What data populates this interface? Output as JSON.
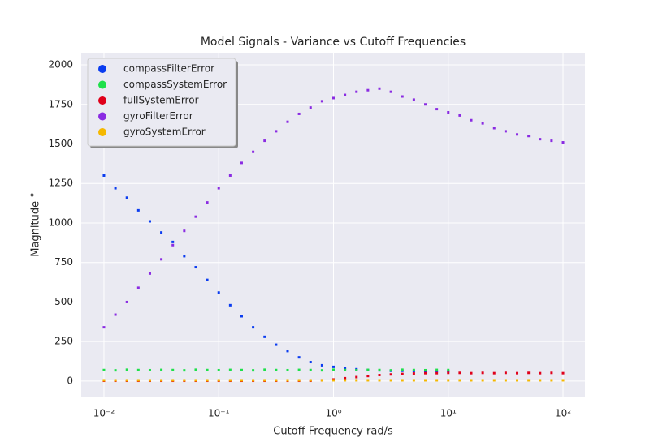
{
  "chart_data": {
    "type": "scatter",
    "title": "Model Signals - Variance vs Cutoff Frequencies",
    "x_label": "Cutoff Frequency rad/s",
    "y_label": "Magnitude °",
    "xscale": "log",
    "xlim": [
      0.00634,
      155.2
    ],
    "ylim": [
      -103,
      2077
    ],
    "xticks": [
      {
        "value": 0.01,
        "label": "10⁻²"
      },
      {
        "value": 0.1,
        "label": "10⁻¹"
      },
      {
        "value": 1,
        "label": "10⁰"
      },
      {
        "value": 10,
        "label": "10¹"
      },
      {
        "value": 100,
        "label": "10²"
      }
    ],
    "yticks": [
      0,
      250,
      500,
      750,
      1000,
      1250,
      1500,
      1750,
      2000
    ],
    "grid": true,
    "legend": "upper left",
    "x": [
      0.01,
      0.01259,
      0.01585,
      0.01995,
      0.02512,
      0.03162,
      0.03981,
      0.05012,
      0.0631,
      0.07943,
      0.1,
      0.1259,
      0.1585,
      0.1995,
      0.2512,
      0.3162,
      0.3981,
      0.5012,
      0.631,
      0.7943,
      1,
      1.259,
      1.585,
      1.995,
      2.512,
      3.162,
      3.981,
      5.012,
      6.31,
      7.943,
      10,
      12.59,
      15.85,
      19.95,
      25.12,
      31.62,
      39.81,
      50.12,
      63.1,
      79.43,
      100
    ],
    "series": [
      {
        "name": "compassFilterError",
        "color": "#0a3cf0",
        "values": [
          1300,
          1220,
          1160,
          1080,
          1010,
          940,
          880,
          790,
          720,
          640,
          560,
          480,
          410,
          340,
          280,
          230,
          190,
          150,
          120,
          100,
          90,
          80,
          75,
          70,
          68,
          65,
          65,
          63,
          62,
          62,
          62,
          null,
          null,
          null,
          null,
          null,
          null,
          null,
          null,
          null,
          null
        ]
      },
      {
        "name": "compassSystemError",
        "color": "#1ee04a",
        "values": [
          70,
          68,
          72,
          70,
          69,
          71,
          70,
          68,
          72,
          70,
          69,
          71,
          70,
          68,
          72,
          70,
          69,
          71,
          70,
          68,
          72,
          70,
          69,
          71,
          70,
          68,
          72,
          70,
          69,
          71,
          70,
          null,
          null,
          null,
          null,
          null,
          null,
          null,
          null,
          null,
          null
        ]
      },
      {
        "name": "fullSystemError",
        "color": "#e0001a",
        "values": [
          2,
          2,
          2,
          2,
          2,
          2,
          2,
          2,
          2,
          2,
          2,
          2,
          2,
          2,
          2,
          2,
          2,
          2,
          2,
          5,
          10,
          18,
          25,
          32,
          38,
          42,
          45,
          48,
          50,
          50,
          52,
          52,
          50,
          52,
          50,
          52,
          50,
          52,
          50,
          52,
          50
        ]
      },
      {
        "name": "gyroFilterError",
        "color": "#8a2be2",
        "values": [
          340,
          420,
          500,
          590,
          680,
          770,
          860,
          950,
          1040,
          1130,
          1220,
          1300,
          1380,
          1450,
          1520,
          1580,
          1640,
          1690,
          1730,
          1770,
          1790,
          1810,
          1830,
          1840,
          1850,
          1830,
          1800,
          1780,
          1750,
          1720,
          1700,
          1680,
          1650,
          1630,
          1600,
          1580,
          1560,
          1550,
          1530,
          1520,
          1510
        ]
      },
      {
        "name": "gyroSystemError",
        "color": "#f5b800",
        "values": [
          5,
          5,
          5,
          5,
          5,
          5,
          5,
          5,
          5,
          5,
          5,
          5,
          5,
          5,
          5,
          5,
          5,
          5,
          5,
          5,
          5,
          5,
          5,
          5,
          5,
          5,
          5,
          5,
          5,
          5,
          5,
          5,
          5,
          5,
          5,
          5,
          5,
          5,
          5,
          5,
          5
        ]
      }
    ]
  }
}
